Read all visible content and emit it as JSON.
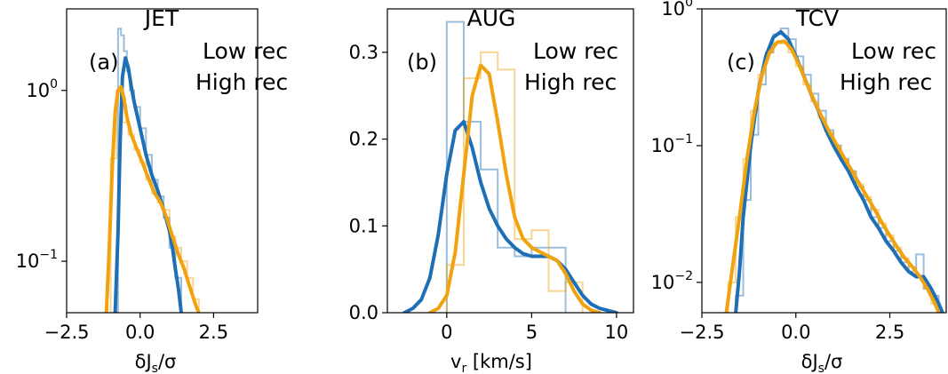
{
  "colors": {
    "low": "#1f6fb5",
    "high": "#f1a20f"
  },
  "chart_data": [
    {
      "type": "line",
      "title": "JET",
      "panel_label": "(a)",
      "xlabel": "δJ_s/σ",
      "xlim": [
        -2.5,
        4.0
      ],
      "ylim": [
        0.05,
        3.0
      ],
      "yscale": "log",
      "xticks": [
        -2.5,
        0.0,
        2.5
      ],
      "xticklabels": [
        "−2.5",
        "0.0",
        "2.5"
      ],
      "yticks": [
        {
          "value": 1.0,
          "base": "10",
          "exp": "0"
        },
        {
          "value": 0.1,
          "base": "10",
          "exp": "−1"
        }
      ],
      "legend": [
        "Low rec",
        "High rec"
      ],
      "legend_position": "top-right",
      "series": [
        {
          "name": "Low rec",
          "color_key": "low",
          "kde": [
            [
              -0.85,
              0.05
            ],
            [
              -0.75,
              0.15
            ],
            [
              -0.68,
              0.5
            ],
            [
              -0.6,
              1.2
            ],
            [
              -0.5,
              1.55
            ],
            [
              -0.4,
              1.35
            ],
            [
              -0.3,
              1.05
            ],
            [
              -0.2,
              0.85
            ],
            [
              0.0,
              0.6
            ],
            [
              0.2,
              0.42
            ],
            [
              0.4,
              0.32
            ],
            [
              0.6,
              0.26
            ],
            [
              0.8,
              0.2
            ],
            [
              1.0,
              0.15
            ],
            [
              1.1,
              0.12
            ],
            [
              1.2,
              0.09
            ],
            [
              1.3,
              0.07
            ],
            [
              1.4,
              0.05
            ]
          ],
          "hist_edges": [
            -0.85,
            -0.75,
            -0.65,
            -0.55,
            -0.45,
            -0.35,
            -0.2,
            0.0,
            0.2,
            0.4,
            0.6,
            0.8,
            1.0,
            1.2,
            1.4
          ],
          "hist_values": [
            0.05,
            2.3,
            2.1,
            1.7,
            1.3,
            1.0,
            0.8,
            0.6,
            0.42,
            0.3,
            0.24,
            0.18,
            0.12,
            0.08
          ]
        },
        {
          "name": "High rec",
          "color_key": "high",
          "kde": [
            [
              -1.15,
              0.05
            ],
            [
              -1.05,
              0.12
            ],
            [
              -0.95,
              0.35
            ],
            [
              -0.85,
              0.75
            ],
            [
              -0.75,
              1.0
            ],
            [
              -0.65,
              1.05
            ],
            [
              -0.55,
              0.9
            ],
            [
              -0.45,
              0.7
            ],
            [
              -0.3,
              0.55
            ],
            [
              -0.1,
              0.45
            ],
            [
              0.1,
              0.37
            ],
            [
              0.3,
              0.3
            ],
            [
              0.5,
              0.25
            ],
            [
              0.7,
              0.22
            ],
            [
              0.9,
              0.18
            ],
            [
              1.1,
              0.14
            ],
            [
              1.3,
              0.11
            ],
            [
              1.5,
              0.09
            ],
            [
              1.7,
              0.07
            ],
            [
              1.9,
              0.055
            ],
            [
              2.0,
              0.05
            ]
          ],
          "hist_edges": [
            -1.0,
            -0.8,
            -0.6,
            -0.4,
            -0.2,
            0.0,
            0.2,
            0.4,
            0.6,
            0.8,
            1.0,
            1.2,
            1.4,
            1.6,
            1.8,
            2.0
          ],
          "hist_values": [
            0.4,
            1.0,
            0.65,
            0.55,
            0.45,
            0.38,
            0.3,
            0.25,
            0.22,
            0.2,
            0.14,
            0.12,
            0.1,
            0.08,
            0.06
          ]
        }
      ]
    },
    {
      "type": "line",
      "title": "AUG",
      "panel_label": "(b)",
      "xlabel": "v_r [km/s]",
      "xlim": [
        -3.5,
        11.0
      ],
      "ylim": [
        0.0,
        0.35
      ],
      "yscale": "linear",
      "xticks": [
        0,
        5,
        10
      ],
      "xticklabels": [
        "0",
        "5",
        "10"
      ],
      "yticks": [
        {
          "value": 0.0,
          "label": "0.0"
        },
        {
          "value": 0.1,
          "label": "0.1"
        },
        {
          "value": 0.2,
          "label": "0.2"
        },
        {
          "value": 0.3,
          "label": "0.3"
        }
      ],
      "legend": [
        "Low rec",
        "High rec"
      ],
      "legend_position": "top-right",
      "series": [
        {
          "name": "Low rec",
          "color_key": "low",
          "kde": [
            [
              -2.5,
              0.0
            ],
            [
              -2.0,
              0.005
            ],
            [
              -1.5,
              0.015
            ],
            [
              -1.0,
              0.04
            ],
            [
              -0.5,
              0.09
            ],
            [
              0.0,
              0.16
            ],
            [
              0.5,
              0.21
            ],
            [
              1.0,
              0.22
            ],
            [
              1.5,
              0.19
            ],
            [
              2.0,
              0.15
            ],
            [
              2.5,
              0.12
            ],
            [
              3.0,
              0.1
            ],
            [
              3.5,
              0.085
            ],
            [
              4.0,
              0.075
            ],
            [
              4.5,
              0.068
            ],
            [
              5.0,
              0.065
            ],
            [
              5.5,
              0.065
            ],
            [
              6.0,
              0.065
            ],
            [
              6.5,
              0.06
            ],
            [
              7.0,
              0.05
            ],
            [
              7.5,
              0.035
            ],
            [
              8.0,
              0.02
            ],
            [
              8.5,
              0.01
            ],
            [
              9.0,
              0.005
            ],
            [
              10.0,
              0.0
            ]
          ],
          "hist_edges": [
            0,
            1,
            2,
            3,
            4,
            5,
            6,
            7
          ],
          "hist_values": [
            0.335,
            0.22,
            0.165,
            0.075,
            0.065,
            0.075,
            0.075
          ]
        },
        {
          "name": "High rec",
          "color_key": "high",
          "kde": [
            [
              -1.0,
              0.0
            ],
            [
              -0.5,
              0.005
            ],
            [
              0.0,
              0.02
            ],
            [
              0.5,
              0.07
            ],
            [
              1.0,
              0.16
            ],
            [
              1.5,
              0.25
            ],
            [
              2.0,
              0.285
            ],
            [
              2.5,
              0.275
            ],
            [
              3.0,
              0.22
            ],
            [
              3.5,
              0.16
            ],
            [
              4.0,
              0.11
            ],
            [
              4.5,
              0.085
            ],
            [
              5.0,
              0.075
            ],
            [
              5.5,
              0.07
            ],
            [
              6.0,
              0.065
            ],
            [
              6.5,
              0.06
            ],
            [
              7.0,
              0.045
            ],
            [
              7.5,
              0.025
            ],
            [
              8.0,
              0.01
            ],
            [
              8.5,
              0.003
            ],
            [
              9.0,
              0.0
            ]
          ],
          "hist_edges": [
            0,
            1,
            2,
            3,
            4,
            5,
            6,
            7,
            8
          ],
          "hist_values": [
            0.055,
            0.27,
            0.3,
            0.28,
            0.085,
            0.095,
            0.025,
            0.035
          ]
        }
      ]
    },
    {
      "type": "line",
      "title": "TCV",
      "panel_label": "(c)",
      "xlabel": "δJ_s/σ",
      "xlim": [
        -2.5,
        4.0
      ],
      "ylim": [
        0.006,
        1.0
      ],
      "yscale": "log",
      "xticks": [
        -2.5,
        0.0,
        2.5
      ],
      "xticklabels": [
        "−2.5",
        "0.0",
        "2.5"
      ],
      "yticks": [
        {
          "value": 1.0,
          "base": "10",
          "exp": "0"
        },
        {
          "value": 0.1,
          "base": "10",
          "exp": "−1"
        },
        {
          "value": 0.01,
          "base": "10",
          "exp": "−2"
        }
      ],
      "legend": [
        "Low rec",
        "High rec"
      ],
      "legend_position": "top-right",
      "series": [
        {
          "name": "Low rec",
          "color_key": "low",
          "kde": [
            [
              -1.6,
              0.006
            ],
            [
              -1.5,
              0.012
            ],
            [
              -1.4,
              0.03
            ],
            [
              -1.2,
              0.1
            ],
            [
              -1.0,
              0.25
            ],
            [
              -0.8,
              0.45
            ],
            [
              -0.6,
              0.62
            ],
            [
              -0.4,
              0.68
            ],
            [
              -0.2,
              0.6
            ],
            [
              0.0,
              0.45
            ],
            [
              0.2,
              0.33
            ],
            [
              0.4,
              0.24
            ],
            [
              0.6,
              0.18
            ],
            [
              0.8,
              0.13
            ],
            [
              1.0,
              0.1
            ],
            [
              1.2,
              0.08
            ],
            [
              1.4,
              0.065
            ],
            [
              1.6,
              0.05
            ],
            [
              1.8,
              0.04
            ],
            [
              2.0,
              0.03
            ],
            [
              2.2,
              0.025
            ],
            [
              2.4,
              0.02
            ],
            [
              2.6,
              0.017
            ],
            [
              2.8,
              0.014
            ],
            [
              3.0,
              0.012
            ],
            [
              3.2,
              0.011
            ],
            [
              3.4,
              0.011
            ],
            [
              3.6,
              0.009
            ],
            [
              3.8,
              0.007
            ],
            [
              3.9,
              0.006
            ]
          ],
          "hist_edges": [
            -1.6,
            -1.4,
            -1.2,
            -1.0,
            -0.8,
            -0.6,
            -0.4,
            -0.2,
            0.0,
            0.2,
            0.4,
            0.6,
            0.8,
            1.0,
            1.2,
            1.4,
            1.6,
            1.8,
            2.0,
            2.2,
            2.4,
            2.6,
            2.8,
            3.0,
            3.2,
            3.4,
            3.6,
            3.8
          ],
          "hist_values": [
            0.008,
            0.04,
            0.12,
            0.28,
            0.48,
            0.65,
            0.72,
            0.6,
            0.45,
            0.33,
            0.24,
            0.18,
            0.13,
            0.1,
            0.08,
            0.065,
            0.05,
            0.04,
            0.03,
            0.025,
            0.02,
            0.017,
            0.014,
            0.012,
            0.016,
            0.009,
            0.008
          ]
        },
        {
          "name": "High rec",
          "color_key": "high",
          "kde": [
            [
              -1.85,
              0.006
            ],
            [
              -1.7,
              0.012
            ],
            [
              -1.5,
              0.03
            ],
            [
              -1.3,
              0.08
            ],
            [
              -1.1,
              0.18
            ],
            [
              -0.9,
              0.33
            ],
            [
              -0.7,
              0.48
            ],
            [
              -0.5,
              0.57
            ],
            [
              -0.3,
              0.58
            ],
            [
              -0.1,
              0.5
            ],
            [
              0.1,
              0.38
            ],
            [
              0.3,
              0.28
            ],
            [
              0.5,
              0.21
            ],
            [
              0.7,
              0.16
            ],
            [
              0.9,
              0.125
            ],
            [
              1.1,
              0.1
            ],
            [
              1.3,
              0.08
            ],
            [
              1.5,
              0.065
            ],
            [
              1.7,
              0.052
            ],
            [
              1.9,
              0.042
            ],
            [
              2.1,
              0.034
            ],
            [
              2.3,
              0.027
            ],
            [
              2.5,
              0.022
            ],
            [
              2.7,
              0.018
            ],
            [
              2.9,
              0.015
            ],
            [
              3.1,
              0.013
            ],
            [
              3.3,
              0.011
            ],
            [
              3.5,
              0.009
            ],
            [
              3.7,
              0.007
            ],
            [
              3.8,
              0.006
            ]
          ],
          "hist_edges": [
            -1.8,
            -1.6,
            -1.4,
            -1.2,
            -1.0,
            -0.8,
            -0.6,
            -0.4,
            -0.2,
            0.0,
            0.2,
            0.4,
            0.6,
            0.8,
            1.0,
            1.2,
            1.4,
            1.6,
            1.8,
            2.0,
            2.2,
            2.4,
            2.6,
            2.8,
            3.0,
            3.2,
            3.4,
            3.6,
            3.8
          ],
          "hist_values": [
            0.01,
            0.03,
            0.08,
            0.18,
            0.33,
            0.48,
            0.56,
            0.56,
            0.48,
            0.38,
            0.28,
            0.21,
            0.16,
            0.125,
            0.1,
            0.08,
            0.065,
            0.052,
            0.042,
            0.034,
            0.027,
            0.022,
            0.018,
            0.015,
            0.013,
            0.011,
            0.009,
            0.007
          ]
        }
      ]
    }
  ]
}
